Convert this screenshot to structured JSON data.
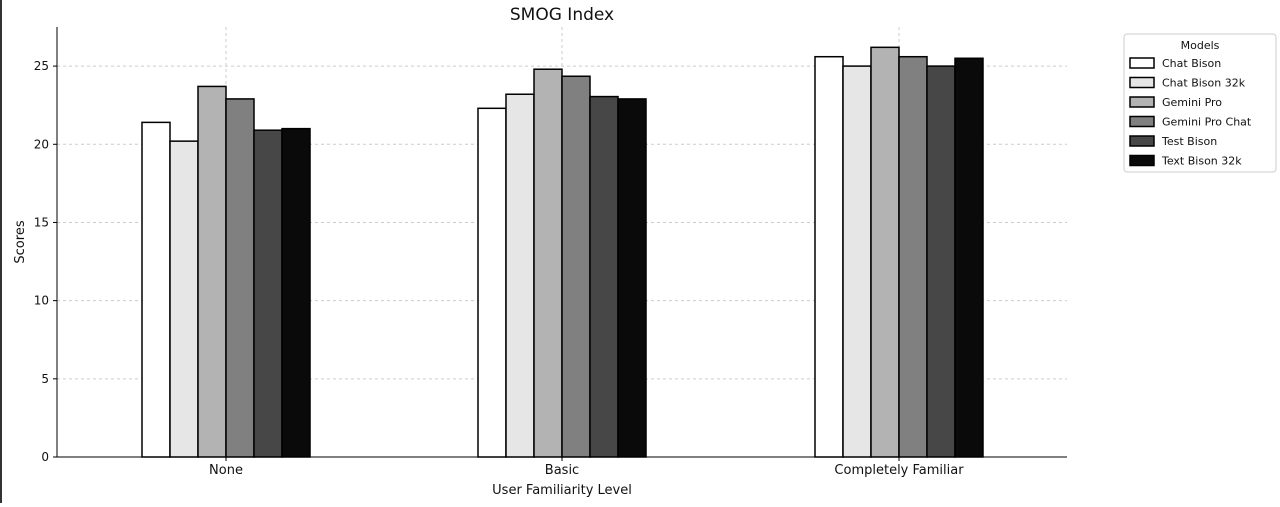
{
  "chart_data": {
    "type": "bar",
    "title": "SMOG Index",
    "xlabel": "User Familiarity Level",
    "ylabel": "Scores",
    "ylim": [
      0,
      27.5
    ],
    "yticks": [
      0,
      5,
      10,
      15,
      20,
      25
    ],
    "grid": true,
    "categories": [
      "None",
      "Basic",
      "Completely Familiar"
    ],
    "legend": {
      "title": "Models",
      "placement": "outside-top-right"
    },
    "series": [
      {
        "name": "Chat Bison",
        "color": "#ffffff",
        "values": [
          21.4,
          22.3,
          25.6
        ]
      },
      {
        "name": "Chat Bison 32k",
        "color": "#e6e6e6",
        "values": [
          20.2,
          23.2,
          25.0
        ]
      },
      {
        "name": "Gemini Pro",
        "color": "#b3b3b3",
        "values": [
          23.7,
          24.8,
          26.2
        ]
      },
      {
        "name": "Gemini Pro Chat",
        "color": "#808080",
        "values": [
          22.9,
          24.35,
          25.6
        ]
      },
      {
        "name": "Test Bison",
        "color": "#474747",
        "values": [
          20.9,
          23.05,
          25.0
        ]
      },
      {
        "name": "Text Bison 32k",
        "color": "#0a0a0a",
        "values": [
          21.0,
          22.9,
          25.5
        ]
      }
    ]
  }
}
